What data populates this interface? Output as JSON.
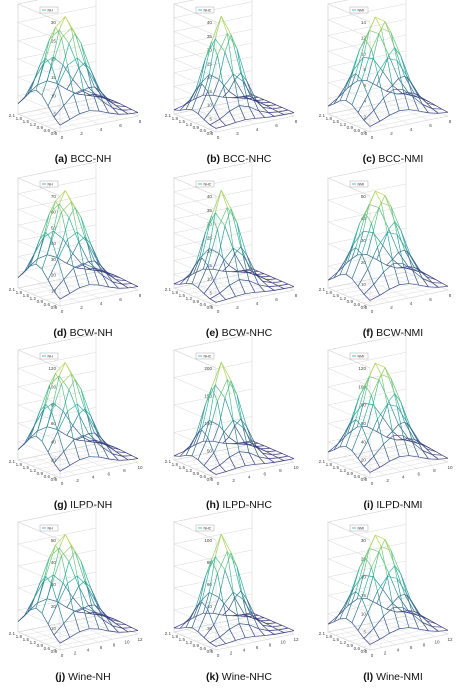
{
  "figure": {
    "panels": [
      {
        "tag": "(a)",
        "name": "BCC-NH",
        "legend": "NH",
        "zmax": 30,
        "zticks": [
          0,
          5,
          10,
          15,
          20,
          25,
          30
        ],
        "xmax": 8
      },
      {
        "tag": "(b)",
        "name": "BCC-NHC",
        "legend": "NHC",
        "zmax": 40,
        "zticks": [
          0,
          5,
          10,
          15,
          20,
          25,
          30,
          35,
          40
        ],
        "xmax": 8
      },
      {
        "tag": "(c)",
        "name": "BCC-NMI",
        "legend": "NMI",
        "zmax": 14,
        "zticks": [
          0,
          2,
          4,
          6,
          8,
          10,
          12,
          14
        ],
        "xmax": 8
      },
      {
        "tag": "(d)",
        "name": "BCW-NH",
        "legend": "NH",
        "zmax": 70,
        "zticks": [
          0,
          10,
          20,
          30,
          40,
          50,
          60,
          70
        ],
        "xmax": 8
      },
      {
        "tag": "(e)",
        "name": "BCW-NHC",
        "legend": "NHC",
        "zmax": 40,
        "zticks": [
          0,
          5,
          10,
          15,
          20,
          25,
          30,
          35,
          40
        ],
        "xmax": 8
      },
      {
        "tag": "(f)",
        "name": "BCW-NMI",
        "legend": "NMI",
        "zmax": 50,
        "zticks": [
          0,
          10,
          20,
          30,
          40,
          50
        ],
        "xmax": 8
      },
      {
        "tag": "(g)",
        "name": "ILPD-NH",
        "legend": "NH",
        "zmax": 120,
        "zticks": [
          0,
          20,
          40,
          60,
          80,
          100,
          120
        ],
        "xmax": 10
      },
      {
        "tag": "(h)",
        "name": "ILPD-NHC",
        "legend": "NHC",
        "zmax": 200,
        "zticks": [
          0,
          50,
          100,
          150,
          200
        ],
        "xmax": 10
      },
      {
        "tag": "(i)",
        "name": "ILPD-NMI",
        "legend": "NMI",
        "zmax": 120,
        "zticks": [
          0,
          20,
          40,
          60,
          80,
          100,
          120
        ],
        "xmax": 10
      },
      {
        "tag": "(j)",
        "name": "Wine-NH",
        "legend": "NH",
        "zmax": 50,
        "zticks": [
          0,
          10,
          20,
          30,
          40,
          50
        ],
        "xmax": 12
      },
      {
        "tag": "(k)",
        "name": "Wine-NHC",
        "legend": "NHC",
        "zmax": 100,
        "zticks": [
          0,
          20,
          40,
          60,
          80,
          100
        ],
        "xmax": 12
      },
      {
        "tag": "(l)",
        "name": "Wine-NMI",
        "legend": "NMI",
        "zmax": 30,
        "zticks": [
          0,
          5,
          10,
          15,
          20,
          25,
          30
        ],
        "xmax": 12
      }
    ],
    "y_ticks": [
      "2.1",
      "1.8",
      "1.5",
      "1.2",
      "0.9",
      "0.6",
      "0.3"
    ],
    "colors": {
      "surface_low": "#3b2f7a",
      "surface_mid": "#2bb3a0",
      "surface_high": "#f2e43a",
      "grid": "#d8d8d8",
      "axis": "#555555"
    }
  }
}
